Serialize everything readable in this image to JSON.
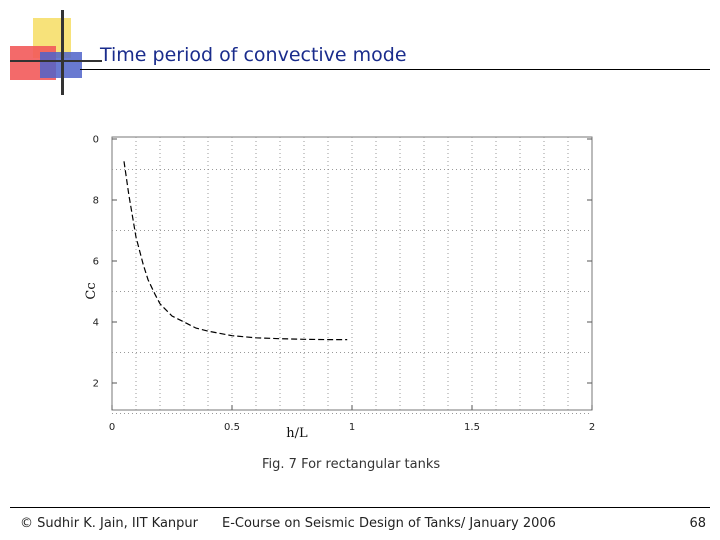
{
  "slide": {
    "title": "Time period of convective mode",
    "caption": "Fig. 7 For rectangular tanks",
    "footer_left": "© Sudhir K. Jain, IIT Kanpur",
    "footer_center": "E-Course on Seismic Design of Tanks/ January 2006",
    "page_number": "68"
  },
  "chart_data": {
    "type": "line",
    "title": "",
    "xlabel": "h/L",
    "ylabel": "Cc",
    "xlim": [
      0,
      2
    ],
    "ylim": [
      1,
      10
    ],
    "x_ticks": [
      "0",
      "0.5",
      "1",
      "1.5",
      "2"
    ],
    "y_ticks": [
      "0",
      "8",
      "6",
      "4",
      "2"
    ],
    "grid": true,
    "series": [
      {
        "line_style": "dashed",
        "color": "#000000",
        "x": [
          0.05,
          0.07,
          0.1,
          0.13,
          0.15,
          0.18,
          0.2,
          0.25,
          0.3,
          0.35,
          0.4,
          0.5,
          0.6,
          0.7,
          0.8,
          0.9,
          0.98
        ],
        "y": [
          9.2,
          8.1,
          6.7,
          5.8,
          5.3,
          4.8,
          4.5,
          4.1,
          3.9,
          3.7,
          3.6,
          3.45,
          3.38,
          3.35,
          3.33,
          3.32,
          3.32
        ]
      }
    ]
  }
}
